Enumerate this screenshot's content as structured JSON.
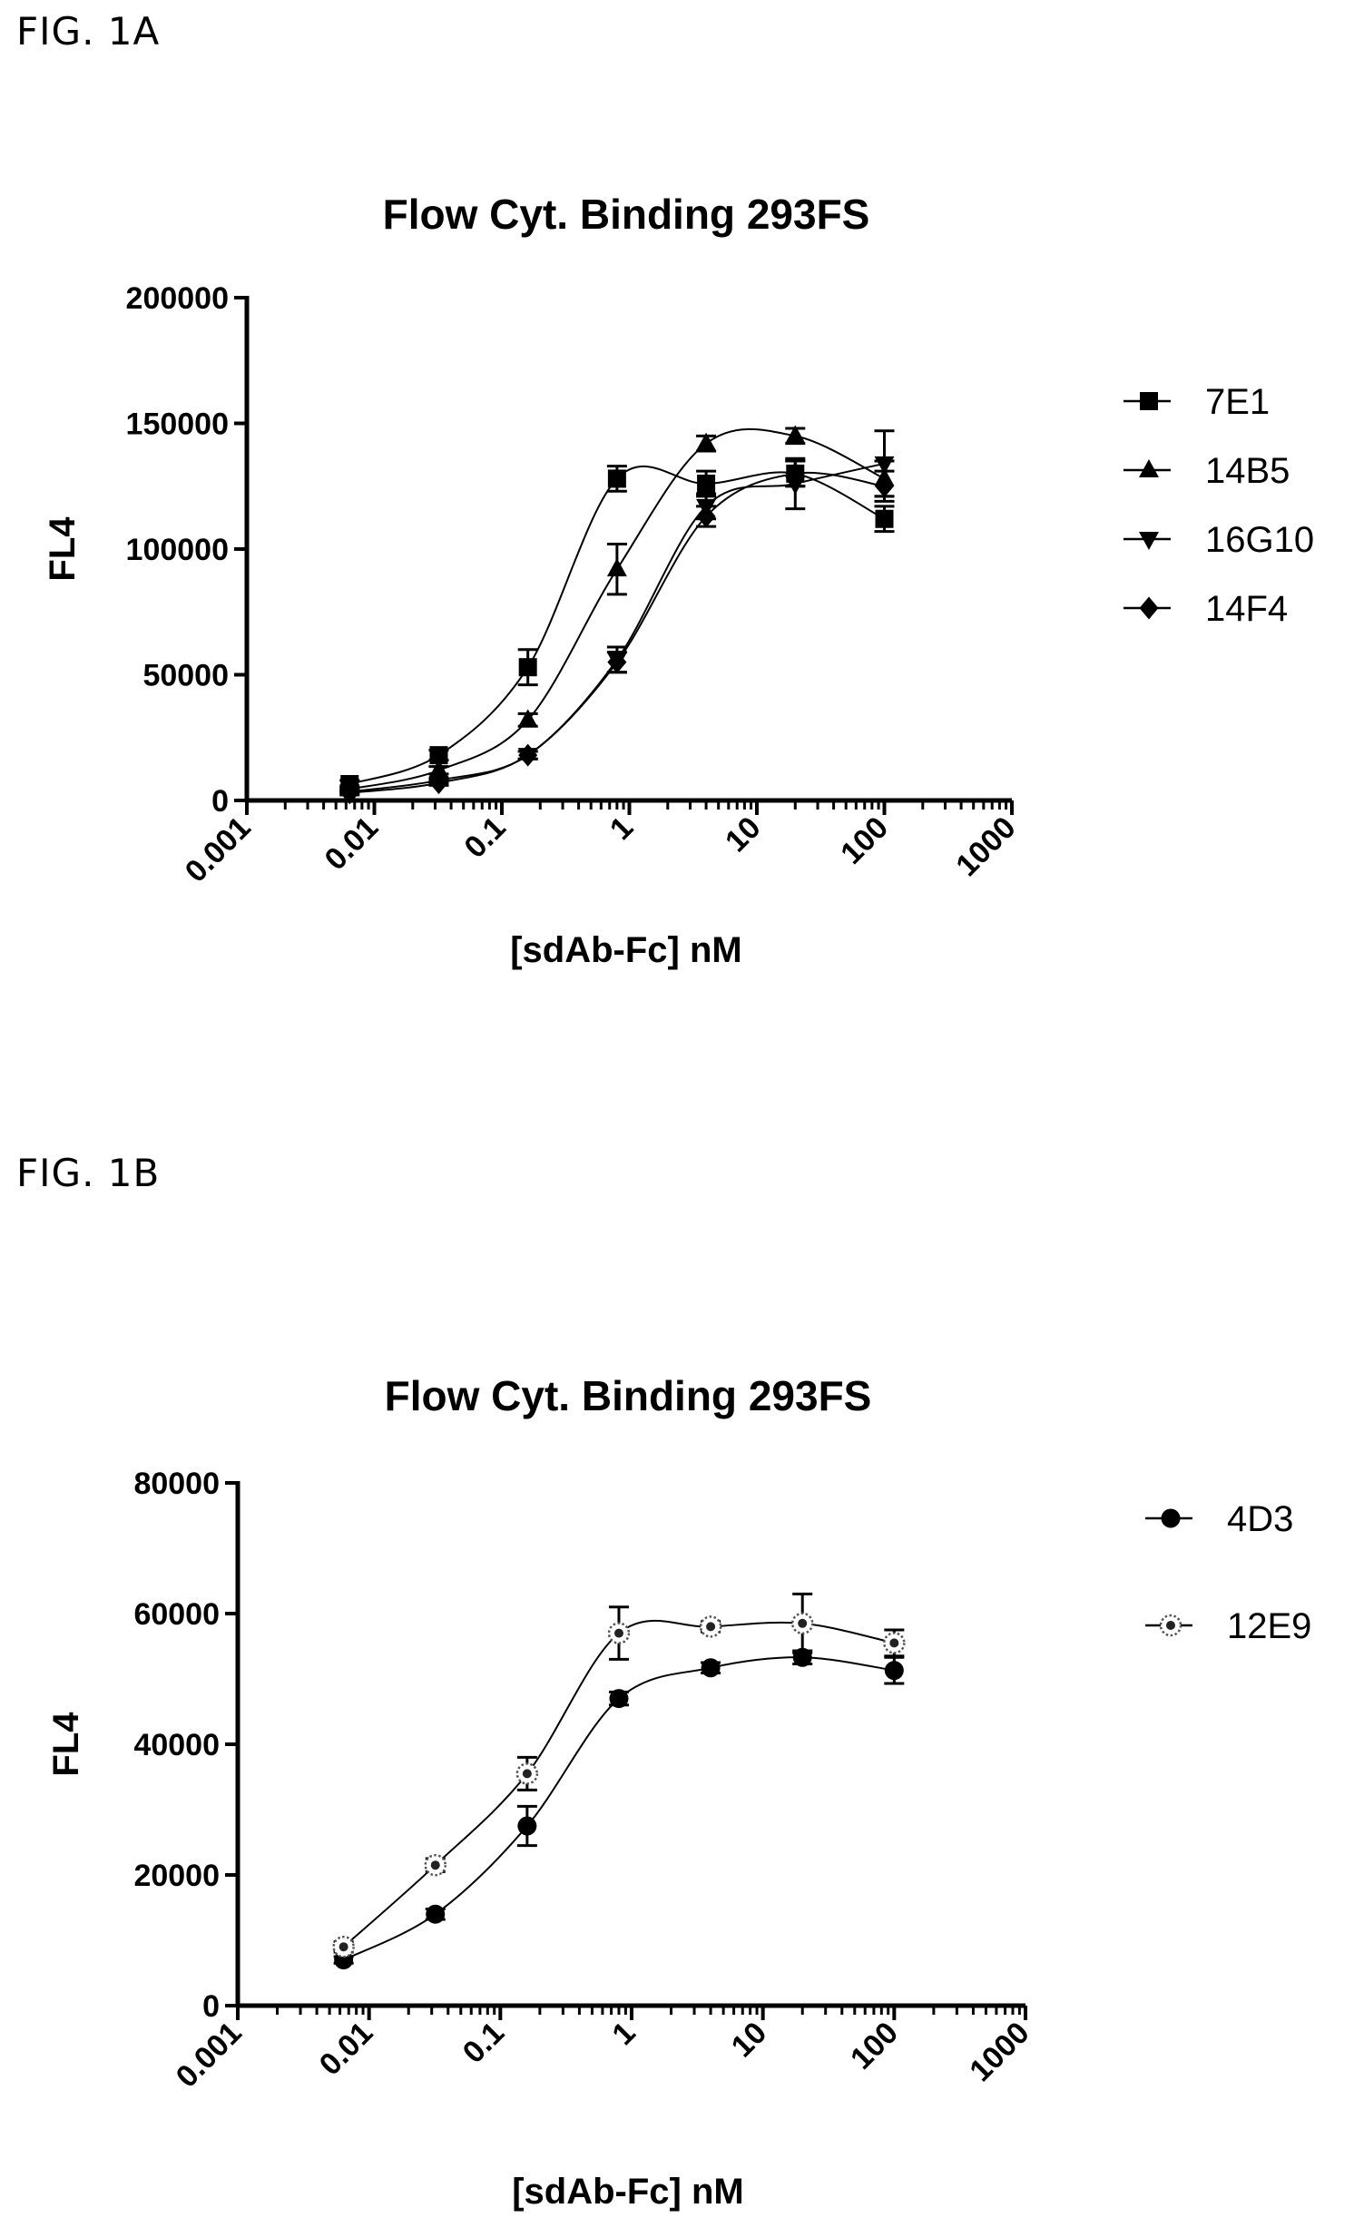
{
  "figures": [
    {
      "label": "FIG. 1A",
      "chart_data": {
        "type": "scatter",
        "title": "Flow Cyt. Binding 293FS",
        "xlabel": "[sdAb-Fc] nM",
        "ylabel": "FL4",
        "xscale": "log",
        "xlim": [
          0.001,
          1000
        ],
        "ylim": [
          0,
          200000
        ],
        "xticks": [
          "0.001",
          "0.01",
          "0.1",
          "1",
          "10",
          "100",
          "1000"
        ],
        "yticks": [
          "0",
          "50000",
          "100000",
          "150000",
          "200000"
        ],
        "legend_position": "right",
        "x": [
          0.0064,
          0.032,
          0.16,
          0.8,
          4,
          20,
          100
        ],
        "series": [
          {
            "name": "7E1",
            "marker": "square",
            "values": [
              6500,
              18000,
              53000,
              128000,
              126000,
              130000,
              112000
            ],
            "errors": [
              1500,
              2000,
              7000,
              5000,
              5000,
              5000,
              5000
            ]
          },
          {
            "name": "14B5",
            "marker": "triangle-up",
            "values": [
              4500,
              12000,
              32000,
              92000,
              142000,
              145000,
              128000
            ],
            "errors": [
              1000,
              1500,
              2500,
              10000,
              3000,
              3000,
              7000
            ]
          },
          {
            "name": "16G10",
            "marker": "triangle-down",
            "values": [
              3500,
              8000,
              18000,
              56000,
              117000,
              126000,
              134000
            ],
            "errors": [
              800,
              1000,
              1500,
              5000,
              5000,
              10000,
              13000
            ]
          },
          {
            "name": "14F4",
            "marker": "diamond",
            "values": [
              3000,
              7000,
              18000,
              55000,
              113000,
              130000,
              125000
            ],
            "errors": [
              800,
              1000,
              1500,
              4000,
              4000,
              5000,
              6000
            ]
          }
        ]
      }
    },
    {
      "label": "FIG. 1B",
      "chart_data": {
        "type": "scatter",
        "title": "Flow Cyt. Binding 293FS",
        "xlabel": "[sdAb-Fc] nM",
        "ylabel": "FL4",
        "xscale": "log",
        "xlim": [
          0.001,
          1000
        ],
        "ylim": [
          0,
          80000
        ],
        "xticks": [
          "0.001",
          "0.01",
          "0.1",
          "1",
          "10",
          "100",
          "1000"
        ],
        "yticks": [
          "0",
          "20000",
          "40000",
          "60000",
          "80000"
        ],
        "legend_position": "right",
        "x": [
          0.0064,
          0.032,
          0.16,
          0.8,
          4,
          20,
          100
        ],
        "series": [
          {
            "name": "4D3",
            "marker": "circle",
            "values": [
              7000,
              14000,
              27500,
              47000,
              51700,
              53300,
              51300
            ],
            "errors": [
              500,
              800,
              3000,
              1000,
              800,
              1000,
              2000
            ]
          },
          {
            "name": "12E9",
            "marker": "dotted-circle",
            "values": [
              9000,
              21500,
              35500,
              57000,
              58000,
              58500,
              55500
            ],
            "errors": [
              800,
              1000,
              2500,
              4000,
              800,
              4500,
              2000
            ]
          }
        ]
      }
    }
  ]
}
